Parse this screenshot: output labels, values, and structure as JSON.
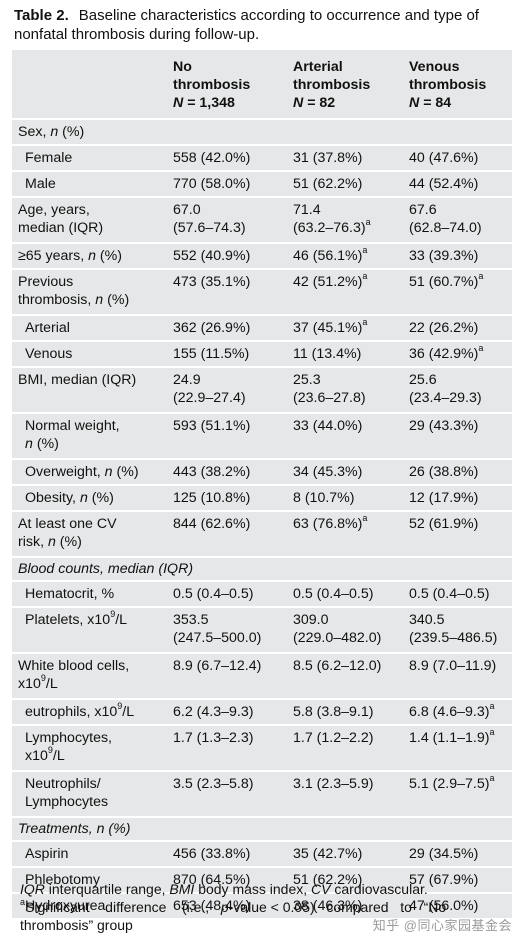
{
  "caption": {
    "label": "Table 2.",
    "text": "Baseline characteristics according to occurrence and type of nonfatal thrombosis during follow-up."
  },
  "header": {
    "col1": [
      "No",
      "thrombosis",
      "N = 1,348"
    ],
    "col2": [
      "Arterial",
      "thrombosis",
      "N = 82"
    ],
    "col3": [
      "Venous",
      "thrombosis",
      "N = 84"
    ]
  },
  "rows": [
    {
      "label": "Sex, n (%)",
      "type": "group"
    },
    {
      "label": "Female",
      "indent": true,
      "v1": "558 (42.0%)",
      "v2": "31 (37.8%)",
      "v3": "40 (47.6%)"
    },
    {
      "label": "Male",
      "indent": true,
      "v1": "770 (58.0%)",
      "v2": "51 (62.2%)",
      "v3": "44 (52.4%)"
    },
    {
      "label": "Age, years, median (IQR)",
      "v1": "67.0 (57.6–74.3)",
      "v2": "71.4 (63.2–76.3)a",
      "v3": "67.6 (62.8–74.0)"
    },
    {
      "label": "≥65 years, n (%)",
      "v1": "552 (40.9%)",
      "v2": "46 (56.1%)a",
      "v3": "33 (39.3%)"
    },
    {
      "label": "Previous thrombosis, n (%)",
      "v1": "473 (35.1%)",
      "v2": "42 (51.2%)a",
      "v3": "51 (60.7%)a"
    },
    {
      "label": "Arterial",
      "indent": true,
      "v1": "362 (26.9%)",
      "v2": "37 (45.1%)a",
      "v3": "22 (26.2%)"
    },
    {
      "label": "Venous",
      "indent": true,
      "v1": "155 (11.5%)",
      "v2": "11 (13.4%)",
      "v3": "36 (42.9%)a"
    },
    {
      "label": "BMI, median (IQR)",
      "v1": "24.9 (22.9–27.4)",
      "v2": "25.3 (23.6–27.8)",
      "v3": "25.6 (23.4–29.3)"
    },
    {
      "label": "Normal weight, n (%)",
      "indent": true,
      "v1": "593 (51.1%)",
      "v2": "33 (44.0%)",
      "v3": "29 (43.3%)"
    },
    {
      "label": "Overweight, n (%)",
      "indent": true,
      "v1": "443 (38.2%)",
      "v2": "34 (45.3%)",
      "v3": "26 (38.8%)"
    },
    {
      "label": "Obesity, n (%)",
      "indent": true,
      "v1": "125 (10.8%)",
      "v2": "8 (10.7%)",
      "v3": "12 (17.9%)"
    },
    {
      "label": "At least one CV risk, n (%)",
      "v1": "844 (62.6%)",
      "v2": "63 (76.8%)a",
      "v3": "52 (61.9%)"
    },
    {
      "label": "Blood counts, median (IQR)",
      "type": "section"
    },
    {
      "label": "Hematocrit, %",
      "indent": true,
      "v1": "0.5 (0.4–0.5)",
      "v2": "0.5 (0.4–0.5)",
      "v3": "0.5 (0.4–0.5)"
    },
    {
      "label": "Platelets, x109/L",
      "indent": true,
      "v1": "353.5 (247.5–500.0)",
      "v2": "309.0 (229.0–482.0)",
      "v3": "340.5 (239.5–486.5)"
    },
    {
      "label": "White blood cells, x109/L",
      "v1": "8.9 (6.7–12.4)",
      "v2": "8.5 (6.2–12.0)",
      "v3": "8.9 (7.0–11.9)"
    },
    {
      "label": "eutrophils, x109/L",
      "indent": true,
      "v1": "6.2 (4.3–9.3)",
      "v2": "5.8 (3.8–9.1)",
      "v3": "6.8 (4.6–9.3)a"
    },
    {
      "label": "Lymphocytes, x109/L",
      "indent": true,
      "v1": "1.7 (1.3–2.3)",
      "v2": "1.7 (1.2–2.2)",
      "v3": "1.4 (1.1–1.9)a"
    },
    {
      "label": "Neutrophils/ Lymphocytes",
      "indent": true,
      "v1": "3.5 (2.3–5.8)",
      "v2": "3.1 (2.3–5.9)",
      "v3": "5.1 (2.9–7.5)a"
    },
    {
      "label": "Treatments, n (%)",
      "type": "section"
    },
    {
      "label": "Aspirin",
      "indent": true,
      "v1": "456 (33.8%)",
      "v2": "35 (42.7%)",
      "v3": "29 (34.5%)"
    },
    {
      "label": "Phlebotomy",
      "indent": true,
      "v1": "870 (64.5%)",
      "v2": "51 (62.2%)",
      "v3": "57 (67.9%)"
    },
    {
      "label": "Hydroxyurea",
      "indent": true,
      "v1": "653 (48.4%)",
      "v2": "38 (46.3%)",
      "v3": "47 (56.0%)"
    }
  ],
  "footnotes": {
    "abbrev": "IQR interquartile range, BMI body mass index, CV cardiovascular.",
    "significant": "aSignificant difference (i.e., p-value < 0.05) compared to “No thrombosis” group"
  },
  "watermark": "知乎 @同心家园基金会",
  "colors": {
    "table_bg": "#e6e7e8",
    "row_divider": "#ffffff",
    "text": "#111111"
  }
}
